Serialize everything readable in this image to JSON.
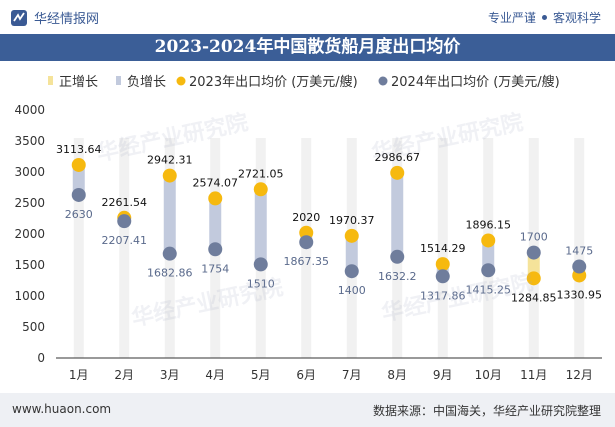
{
  "header": {
    "site_name": "华经情报网",
    "tag1": "专业严谨",
    "tag2": "客观科学"
  },
  "title": "2023-2024年中国散货船月度出口均价",
  "watermark": "华经产业研究院",
  "footer": {
    "url": "www.huaon.com",
    "source": "数据来源：中国海关，华经产业研究院整理"
  },
  "colors": {
    "header_text": "#3a5a94",
    "title_bg": "#3b5e97",
    "positive_bar": "#f5e39a",
    "negative_bar": "#c2cadd",
    "series_2023": "#f6b90f",
    "series_2024": "#6f7d9c",
    "column_bg": "#f1f1f1"
  },
  "chart_data": {
    "type": "line",
    "categories": [
      "1月",
      "2月",
      "3月",
      "4月",
      "5月",
      "6月",
      "7月",
      "8月",
      "9月",
      "10月",
      "11月",
      "12月"
    ],
    "legend": [
      {
        "name": "正增长",
        "kind": "bar"
      },
      {
        "name": "负增长",
        "kind": "bar"
      },
      {
        "name": "2023年出口均价 (万美元/艘)",
        "kind": "dot"
      },
      {
        "name": "2024年出口均价 (万美元/艘)",
        "kind": "dot"
      }
    ],
    "series": [
      {
        "name": "2023年出口均价 (万美元/艘)",
        "values": [
          3113.64,
          2261.54,
          2942.31,
          2574.07,
          2721.05,
          2020,
          1970.37,
          2986.67,
          1514.29,
          1896.15,
          1284.85,
          1330.95
        ]
      },
      {
        "name": "2024年出口均价 (万美元/艘)",
        "values": [
          2630,
          2207.41,
          1682.86,
          1754,
          1510,
          1867.35,
          1400,
          1632.2,
          1317.86,
          1415.25,
          1700,
          1475
        ]
      }
    ],
    "yticks": [
      0,
      500,
      1000,
      1500,
      2000,
      2500,
      3000,
      3500,
      4000
    ],
    "ylim": [
      0,
      4000
    ],
    "legend_position": "top-left",
    "grid": false
  }
}
